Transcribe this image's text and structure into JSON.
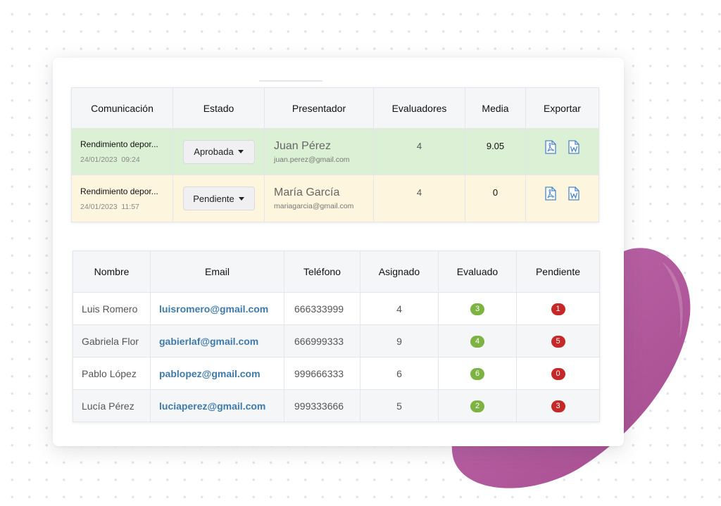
{
  "accent": {
    "green_row": "#dcf0d6",
    "yellow_row": "#fdf5dd",
    "blob": "#b5589f",
    "evaluated_badge": "#7cb342",
    "pending_badge": "#c62828",
    "link": "#3e7aaa"
  },
  "communications": {
    "headers": [
      "Comunicación",
      "Estado",
      "Presentador",
      "Evaluadores",
      "Media",
      "Exportar"
    ],
    "rows": [
      {
        "title": "Rendimiento depor...",
        "date": "24/01/2023  09:24",
        "status": "Aprobada",
        "presenter": "Juan Pérez",
        "email": "juan.perez@gmail.com",
        "evaluators": "4",
        "average": "9.05",
        "export_icons": [
          "pdf-icon",
          "word-icon"
        ]
      },
      {
        "title": "Rendimiento depor...",
        "date": "24/01/2023  11:57",
        "status": "Pendiente",
        "presenter": "María García",
        "email": "mariagarcia@gmail.com",
        "evaluators": "4",
        "average": "0",
        "export_icons": [
          "pdf-icon",
          "word-icon"
        ]
      }
    ]
  },
  "evaluators": {
    "headers": [
      "Nombre",
      "Email",
      "Teléfono",
      "Asignado",
      "Evaluado",
      "Pendiente"
    ],
    "rows": [
      {
        "name": "Luis Romero",
        "email": "luisromero@gmail.com",
        "phone": "666333999",
        "assigned": "4",
        "evaluated": "3",
        "pending": "1"
      },
      {
        "name": "Gabriela Flor",
        "email": "gabierlaf@gmail.com",
        "phone": "666999333",
        "assigned": "9",
        "evaluated": "4",
        "pending": "5"
      },
      {
        "name": "Pablo López",
        "email": "pablopez@gmail.com",
        "phone": "999666333",
        "assigned": "6",
        "evaluated": "6",
        "pending": "0"
      },
      {
        "name": "Lucía Pérez",
        "email": "luciaperez@gmail.com",
        "phone": "999333666",
        "assigned": "5",
        "evaluated": "2",
        "pending": "3"
      }
    ]
  }
}
